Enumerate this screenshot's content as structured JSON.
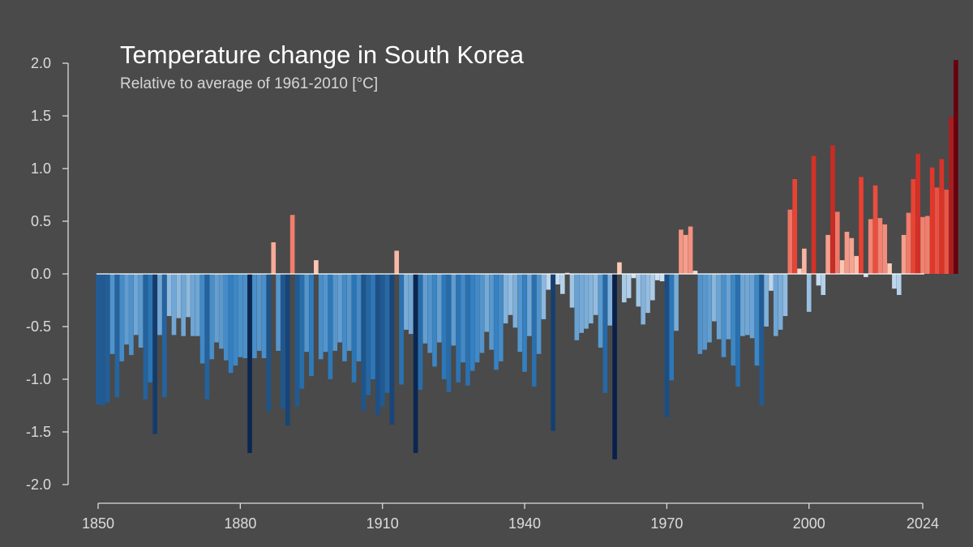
{
  "chart_data": {
    "type": "bar",
    "title": "Temperature change in South Korea",
    "subtitle": "Relative to average of 1961-2010  [°C]",
    "xlabel": "",
    "ylabel": "",
    "x_start": 1850,
    "x_end": 2024,
    "xlim": [
      1850,
      2024
    ],
    "ylim": [
      -2.0,
      2.0
    ],
    "x_ticks": [
      1850,
      1880,
      1910,
      1940,
      1970,
      2000,
      2024
    ],
    "y_ticks": [
      2.0,
      1.5,
      1.0,
      0.5,
      0.0,
      -0.5,
      -1.0,
      -1.5,
      -2.0
    ],
    "y_tick_labels": [
      "2.0",
      "1.5",
      "1.0",
      "0.5",
      "0.0",
      "-0.5",
      "-1.0",
      "-1.5",
      "-2.0"
    ],
    "grid": false,
    "legend": "none",
    "colors": {
      "background": "#4a4a4a",
      "axis": "#dcdcdc",
      "cold_extreme": "#08214a",
      "cold_mid": "#2f7ec1",
      "cold_light": "#cfe2f3",
      "warm_light": "#fdd5c2",
      "warm_mid": "#e83a2c",
      "warm_extreme": "#67000d"
    },
    "values": [
      -1.24,
      -1.25,
      -1.22,
      -0.76,
      -1.17,
      -0.83,
      -0.67,
      -0.77,
      -0.58,
      -0.7,
      -1.19,
      -1.03,
      -1.52,
      -0.58,
      -1.17,
      -0.4,
      -0.58,
      -0.42,
      -0.59,
      -0.41,
      -0.59,
      -0.59,
      -0.85,
      -1.19,
      -0.81,
      -0.65,
      -0.71,
      -0.82,
      -0.94,
      -0.87,
      -0.79,
      -0.8,
      -1.7,
      -0.8,
      -0.73,
      -0.8,
      -1.31,
      0.3,
      -0.73,
      -1.28,
      -1.44,
      0.56,
      -1.26,
      -1.09,
      -0.74,
      -0.97,
      0.13,
      -0.81,
      -0.74,
      -1.0,
      -0.73,
      -0.65,
      -0.83,
      -0.73,
      -1.03,
      -0.83,
      -1.3,
      -1.15,
      -1.0,
      -1.34,
      -1.26,
      -1.13,
      -1.43,
      0.22,
      -1.05,
      -0.53,
      -0.57,
      -1.7,
      -1.1,
      -0.66,
      -0.75,
      -0.88,
      -0.65,
      -1.0,
      -1.12,
      -0.68,
      -1.03,
      -0.84,
      -1.06,
      -0.92,
      -0.84,
      -0.75,
      -0.55,
      -0.72,
      -0.91,
      -0.83,
      -0.47,
      -0.39,
      -0.51,
      -0.74,
      -0.93,
      -0.59,
      -1.07,
      -0.76,
      -0.43,
      -0.15,
      -1.49,
      -0.1,
      -0.19,
      0.01,
      -0.32,
      -0.63,
      -0.56,
      -0.52,
      -0.47,
      -0.39,
      -0.7,
      -1.13,
      -0.49,
      -1.76,
      0.11,
      -0.27,
      -0.23,
      -0.04,
      -0.31,
      -0.48,
      -0.37,
      -0.25,
      -0.06,
      -0.07,
      -1.36,
      -1.01,
      -0.54,
      0.42,
      0.37,
      0.45,
      0.03,
      -0.76,
      -0.72,
      -0.65,
      -0.45,
      -0.62,
      -0.79,
      -0.62,
      -0.87,
      -1.07,
      -0.59,
      -0.58,
      -0.61,
      -0.87,
      -1.25,
      -0.5,
      -0.16,
      -0.59,
      -0.53,
      -0.4,
      0.61,
      0.9,
      0.05,
      0.24,
      -0.36,
      1.12,
      -0.11,
      -0.2,
      0.37,
      1.22,
      0.59,
      0.13,
      0.4,
      0.34,
      0.17,
      0.92,
      -0.03,
      0.52,
      0.84,
      0.53,
      0.47,
      0.1,
      -0.14,
      -0.2,
      0.37,
      0.58,
      0.9,
      1.14,
      0.54,
      0.55,
      1.01,
      0.82,
      1.09,
      0.8,
      1.49,
      2.03
    ]
  }
}
